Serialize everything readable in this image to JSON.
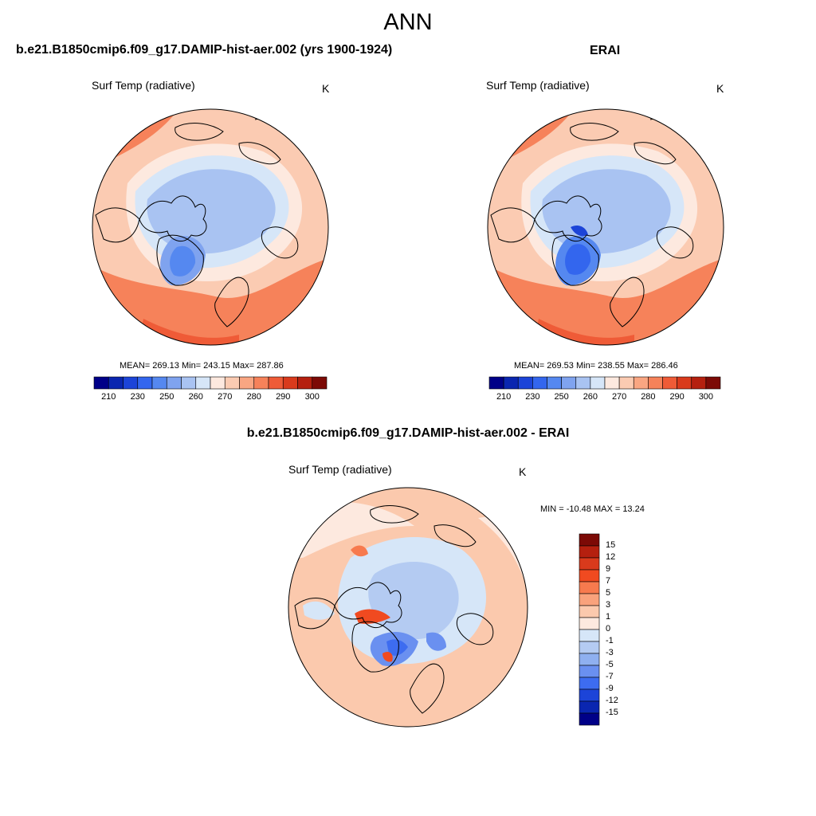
{
  "header": {
    "title": "ANN"
  },
  "panels": [
    {
      "title": "b.e21.B1850cmip6.f09_g17.DAMIP-hist-aer.002 (yrs 1900-1924)",
      "variable": "Surf Temp (radiative)",
      "units": "K",
      "stats": "MEAN= 269.13  Min= 243.15  Max= 287.86",
      "mean": 269.13,
      "min": 243.15,
      "max": 287.86
    },
    {
      "title": "ERAI",
      "variable": "Surf Temp (radiative)",
      "units": "K",
      "stats": "MEAN= 269.53  Min= 238.55  Max= 286.46",
      "mean": 269.53,
      "min": 238.55,
      "max": 286.46
    },
    {
      "title": "b.e21.B1850cmip6.f09_g17.DAMIP-hist-aer.002 - ERAI",
      "variable": "Surf Temp (radiative)",
      "units": "K",
      "stats": "MIN = -10.48 MAX =  13.24",
      "min": -10.48,
      "max": 13.24
    }
  ],
  "chart_data": [
    {
      "type": "heatmap",
      "projection": "north-polar-stereographic",
      "title": "b.e21.B1850cmip6.f09_g17.DAMIP-hist-aer.002 (yrs 1900-1924)",
      "variable": "Surf Temp (radiative)",
      "units": "K",
      "colorbar": {
        "orientation": "horizontal",
        "tick_labels": [
          "210",
          "230",
          "250",
          "260",
          "270",
          "280",
          "290",
          "300"
        ],
        "levels": [
          210,
          220,
          230,
          240,
          250,
          255,
          260,
          265,
          270,
          275,
          280,
          285,
          290,
          295,
          300
        ],
        "colors": [
          "#000088",
          "#0a26b0",
          "#1c44d8",
          "#3366ee",
          "#5588f0",
          "#7fa3ef",
          "#a9c3f2",
          "#d6e6f8",
          "#fde9df",
          "#fbcbb2",
          "#f9a682",
          "#f6825a",
          "#ef5b37",
          "#d93a1c",
          "#b5200f",
          "#7c0a06"
        ]
      },
      "stats": {
        "mean": 269.13,
        "min": 243.15,
        "max": 287.86
      }
    },
    {
      "type": "heatmap",
      "projection": "north-polar-stereographic",
      "title": "ERAI",
      "variable": "Surf Temp (radiative)",
      "units": "K",
      "colorbar": {
        "orientation": "horizontal",
        "tick_labels": [
          "210",
          "230",
          "250",
          "260",
          "270",
          "280",
          "290",
          "300"
        ],
        "levels": [
          210,
          220,
          230,
          240,
          250,
          255,
          260,
          265,
          270,
          275,
          280,
          285,
          290,
          295,
          300
        ],
        "colors": [
          "#000088",
          "#0a26b0",
          "#1c44d8",
          "#3366ee",
          "#5588f0",
          "#7fa3ef",
          "#a9c3f2",
          "#d6e6f8",
          "#fde9df",
          "#fbcbb2",
          "#f9a682",
          "#f6825a",
          "#ef5b37",
          "#d93a1c",
          "#b5200f",
          "#7c0a06"
        ]
      },
      "stats": {
        "mean": 269.53,
        "min": 238.55,
        "max": 286.46
      }
    },
    {
      "type": "heatmap",
      "projection": "north-polar-stereographic",
      "title": "b.e21.B1850cmip6.f09_g17.DAMIP-hist-aer.002 - ERAI",
      "variable": "Surf Temp (radiative)",
      "units": "K",
      "colorbar": {
        "orientation": "vertical",
        "tick_labels": [
          "15",
          "12",
          "9",
          "7",
          "5",
          "3",
          "1",
          "0",
          "-1",
          "-3",
          "-5",
          "-7",
          "-9",
          "-12",
          "-15"
        ],
        "levels": [
          15,
          12,
          9,
          7,
          5,
          3,
          1,
          0,
          -1,
          -3,
          -5,
          -7,
          -9,
          -12,
          -15
        ],
        "colors": [
          "#7c0a06",
          "#b5200f",
          "#d93a1c",
          "#f04a20",
          "#f77a4e",
          "#f9a27c",
          "#fbc9ad",
          "#fde9df",
          "#d6e6f8",
          "#b4cbf2",
          "#8fb0f0",
          "#6a90f0",
          "#3d6cf0",
          "#1c44d8",
          "#0a26b0",
          "#000088"
        ]
      },
      "stats": {
        "min": -10.48,
        "max": 13.24
      }
    }
  ]
}
